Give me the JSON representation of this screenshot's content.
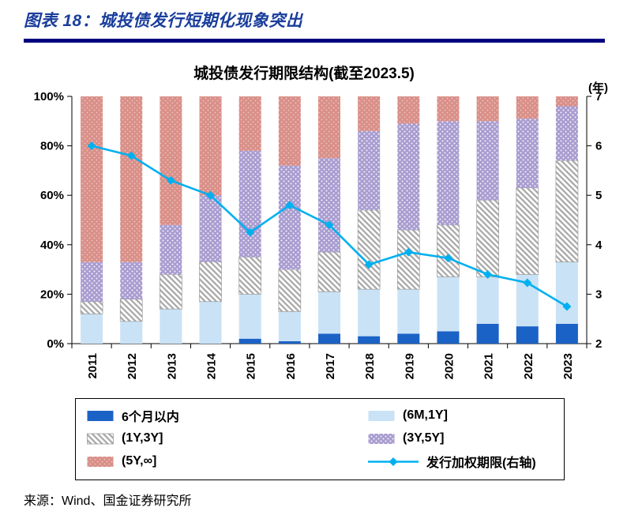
{
  "header": {
    "title": "图表 18：城投债发行短期化现象突出"
  },
  "footer": {
    "source": "来源：Wind、国金证券研究所"
  },
  "colors": {
    "accent_blue": "#1A3E9C",
    "rule_navy": "#00007F",
    "line_cyan": "#00B0F0"
  },
  "chart_data": {
    "type": "bar",
    "subtype": "stacked-percent-with-line-overlay",
    "title": "城投债发行期限结构(截至2023.5)",
    "right_axis_label": "(年)",
    "categories": [
      "2011",
      "2012",
      "2013",
      "2014",
      "2015",
      "2016",
      "2017",
      "2018",
      "2019",
      "2020",
      "2021",
      "2022",
      "2023"
    ],
    "left_axis": {
      "range": [
        0,
        100
      ],
      "ticks": [
        "0%",
        "20%",
        "40%",
        "60%",
        "80%",
        "100%"
      ]
    },
    "right_axis": {
      "range": [
        2,
        7
      ],
      "ticks": [
        "2",
        "3",
        "4",
        "5",
        "6",
        "7"
      ]
    },
    "grid": false,
    "legend_position": "bottom",
    "bar_unit": "percent",
    "bar_series": [
      {
        "name": "6个月以内",
        "color": "#1B62C6",
        "pattern": null,
        "values": [
          0,
          0,
          0,
          0,
          2,
          1,
          4,
          3,
          4,
          5,
          8,
          7,
          8
        ]
      },
      {
        "name": "(6M,1Y]",
        "color": "#C9E2F6",
        "pattern": null,
        "values": [
          12,
          9,
          14,
          17,
          18,
          12,
          17,
          19,
          18,
          22,
          19,
          21,
          25
        ]
      },
      {
        "name": "(1Y,3Y]",
        "color": "#A6A6A6",
        "pattern": "hatch",
        "values": [
          5,
          9,
          14,
          16,
          15,
          17,
          16,
          32,
          24,
          21,
          31,
          35,
          41
        ]
      },
      {
        "name": "(3Y,5Y]",
        "color": "#A89CD0",
        "pattern": "purpledots",
        "values": [
          16,
          15,
          20,
          27,
          43,
          42,
          38,
          32,
          43,
          42,
          32,
          28,
          22
        ]
      },
      {
        "name": "(5Y,∞]",
        "color": "#D98F88",
        "pattern": "salmondots",
        "values": [
          67,
          67,
          52,
          40,
          22,
          28,
          25,
          14,
          11,
          10,
          10,
          9,
          4
        ]
      }
    ],
    "line_series": {
      "name": "发行加权期限(右轴)",
      "color": "#00B0F0",
      "axis": "right",
      "unit": "年",
      "values": [
        6.0,
        5.8,
        5.3,
        5.0,
        4.25,
        4.8,
        4.4,
        3.6,
        3.85,
        3.73,
        3.4,
        3.23,
        2.75
      ]
    }
  }
}
